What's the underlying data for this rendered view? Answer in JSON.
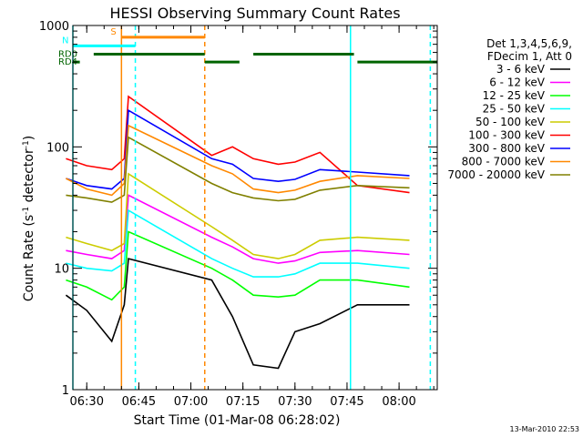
{
  "chart_data": {
    "type": "line",
    "title": "HESSI Observing Summary Count Rates",
    "xlabel": "Start Time (01-Mar-08 06:28:02)",
    "ylabel_main": "Count Rate (s",
    "ylabel_sup1": "-1",
    "ylabel_mid": " detector",
    "ylabel_sup2": "-1",
    "ylabel_end": ")",
    "y_scale": "log",
    "ylim": [
      1,
      1000
    ],
    "xlim": [
      "06:26",
      "08:11"
    ],
    "y_ticks": [
      {
        "value": 1,
        "label": "1"
      },
      {
        "value": 10,
        "label": "10"
      },
      {
        "value": 100,
        "label": "100"
      },
      {
        "value": 1000,
        "label": "1000"
      }
    ],
    "x_ticks": [
      {
        "value": "06:30",
        "label": "06:30"
      },
      {
        "value": "06:45",
        "label": "06:45"
      },
      {
        "value": "07:00",
        "label": "07:00"
      },
      {
        "value": "07:15",
        "label": "07:15"
      },
      {
        "value": "07:30",
        "label": "07:30"
      },
      {
        "value": "07:45",
        "label": "07:45"
      },
      {
        "value": "08:00",
        "label": "08:00"
      }
    ],
    "legend_header": [
      "Det 1,3,4,5,6,9,",
      "FDecim 1, Att 0"
    ],
    "legend_placement": "right",
    "series": [
      {
        "name": "3 - 6 keV",
        "color": "#000000",
        "values": [
          [
            6.4,
            6
          ],
          [
            6.5,
            4.5
          ],
          [
            6.62,
            2.5
          ],
          [
            6.68,
            5
          ],
          [
            6.7,
            12
          ],
          [
            7.1,
            8
          ],
          [
            7.2,
            4
          ],
          [
            7.3,
            1.6
          ],
          [
            7.42,
            1.5
          ],
          [
            7.5,
            3
          ],
          [
            7.62,
            3.5
          ],
          [
            7.8,
            5
          ],
          [
            8.05,
            5
          ]
        ]
      },
      {
        "name": "6 - 12 keV",
        "color": "#ff00ff",
        "values": [
          [
            6.4,
            14
          ],
          [
            6.5,
            13
          ],
          [
            6.62,
            12
          ],
          [
            6.68,
            14
          ],
          [
            6.7,
            40
          ],
          [
            7.1,
            18
          ],
          [
            7.2,
            15
          ],
          [
            7.3,
            12
          ],
          [
            7.42,
            11
          ],
          [
            7.5,
            11.5
          ],
          [
            7.62,
            13.5
          ],
          [
            7.8,
            14
          ],
          [
            8.05,
            13
          ]
        ]
      },
      {
        "name": "12 - 25 keV",
        "color": "#00ff00",
        "values": [
          [
            6.4,
            8
          ],
          [
            6.5,
            7
          ],
          [
            6.62,
            5.5
          ],
          [
            6.68,
            7
          ],
          [
            6.7,
            20
          ],
          [
            7.1,
            10
          ],
          [
            7.2,
            8
          ],
          [
            7.3,
            6
          ],
          [
            7.42,
            5.8
          ],
          [
            7.5,
            6
          ],
          [
            7.62,
            8
          ],
          [
            7.8,
            8
          ],
          [
            8.05,
            7
          ]
        ]
      },
      {
        "name": "25 - 50 keV",
        "color": "#00ffff",
        "values": [
          [
            6.4,
            11
          ],
          [
            6.5,
            10
          ],
          [
            6.62,
            9.5
          ],
          [
            6.68,
            11
          ],
          [
            6.7,
            30
          ],
          [
            7.1,
            12
          ],
          [
            7.2,
            10
          ],
          [
            7.3,
            8.5
          ],
          [
            7.42,
            8.5
          ],
          [
            7.5,
            9
          ],
          [
            7.62,
            11
          ],
          [
            7.8,
            11
          ],
          [
            8.05,
            10
          ]
        ]
      },
      {
        "name": "50 - 100 keV",
        "color": "#cccc00",
        "values": [
          [
            6.4,
            18
          ],
          [
            6.5,
            16
          ],
          [
            6.62,
            14
          ],
          [
            6.68,
            16
          ],
          [
            6.7,
            60
          ],
          [
            7.1,
            22
          ],
          [
            7.2,
            17
          ],
          [
            7.3,
            13
          ],
          [
            7.42,
            12
          ],
          [
            7.5,
            13
          ],
          [
            7.62,
            17
          ],
          [
            7.8,
            18
          ],
          [
            8.05,
            17
          ]
        ]
      },
      {
        "name": "100 - 300 keV",
        "color": "#ff0000",
        "values": [
          [
            6.4,
            80
          ],
          [
            6.5,
            70
          ],
          [
            6.62,
            65
          ],
          [
            6.68,
            80
          ],
          [
            6.7,
            260
          ],
          [
            7.1,
            85
          ],
          [
            7.2,
            100
          ],
          [
            7.3,
            80
          ],
          [
            7.42,
            72
          ],
          [
            7.5,
            75
          ],
          [
            7.62,
            90
          ],
          [
            7.8,
            48
          ],
          [
            8.05,
            42
          ]
        ]
      },
      {
        "name": "300 - 800 keV",
        "color": "#0000ff",
        "values": [
          [
            6.4,
            55
          ],
          [
            6.5,
            48
          ],
          [
            6.62,
            45
          ],
          [
            6.68,
            55
          ],
          [
            6.7,
            200
          ],
          [
            7.1,
            80
          ],
          [
            7.2,
            72
          ],
          [
            7.3,
            55
          ],
          [
            7.42,
            52
          ],
          [
            7.5,
            54
          ],
          [
            7.62,
            65
          ],
          [
            7.8,
            62
          ],
          [
            8.05,
            58
          ]
        ]
      },
      {
        "name": "800 - 7000 keV",
        "color": "#ff8800",
        "values": [
          [
            6.4,
            55
          ],
          [
            6.5,
            45
          ],
          [
            6.62,
            40
          ],
          [
            6.68,
            50
          ],
          [
            6.7,
            150
          ],
          [
            7.1,
            70
          ],
          [
            7.2,
            60
          ],
          [
            7.3,
            45
          ],
          [
            7.42,
            42
          ],
          [
            7.5,
            44
          ],
          [
            7.62,
            52
          ],
          [
            7.8,
            58
          ],
          [
            8.05,
            55
          ]
        ]
      },
      {
        "name": "7000 - 20000 keV",
        "color": "#808000",
        "values": [
          [
            6.4,
            40
          ],
          [
            6.5,
            38
          ],
          [
            6.62,
            35
          ],
          [
            6.68,
            40
          ],
          [
            6.7,
            120
          ],
          [
            7.1,
            50
          ],
          [
            7.2,
            42
          ],
          [
            7.3,
            38
          ],
          [
            7.42,
            36
          ],
          [
            7.5,
            37
          ],
          [
            7.62,
            44
          ],
          [
            7.8,
            48
          ],
          [
            8.05,
            46
          ]
        ]
      }
    ],
    "annotations": {
      "markers": [
        {
          "label": "S",
          "color": "#ff8800",
          "start": "06:40",
          "end": "07:04",
          "level": 800
        },
        {
          "label": "N",
          "color": "#00ffff",
          "start": "06:26",
          "end": "06:44",
          "level": 680
        }
      ],
      "attenuator_rows": [
        {
          "label": "RD0",
          "color": "#006400",
          "level": 580,
          "segments": [
            [
              "06:32",
              "07:04"
            ],
            [
              "07:18",
              "07:47"
            ]
          ]
        },
        {
          "label": "RD4",
          "color": "#006400",
          "level": 500,
          "segments": [
            [
              "06:26",
              "06:28"
            ],
            [
              "07:04",
              "07:14"
            ],
            [
              "07:48",
              "08:11"
            ]
          ]
        }
      ],
      "vertical_lines": [
        {
          "time": "06:26",
          "color": "#00ffff",
          "style": "solid"
        },
        {
          "time": "06:40",
          "color": "#ff8800",
          "style": "solid"
        },
        {
          "time": "06:44",
          "color": "#00ffff",
          "style": "dashed"
        },
        {
          "time": "07:04",
          "color": "#ff8800",
          "style": "dashed"
        },
        {
          "time": "07:46",
          "color": "#00ffff",
          "style": "solid"
        },
        {
          "time": "08:09",
          "color": "#00ffff",
          "style": "dashed"
        }
      ]
    },
    "timestamp": "13-Mar-2010 22:53"
  }
}
